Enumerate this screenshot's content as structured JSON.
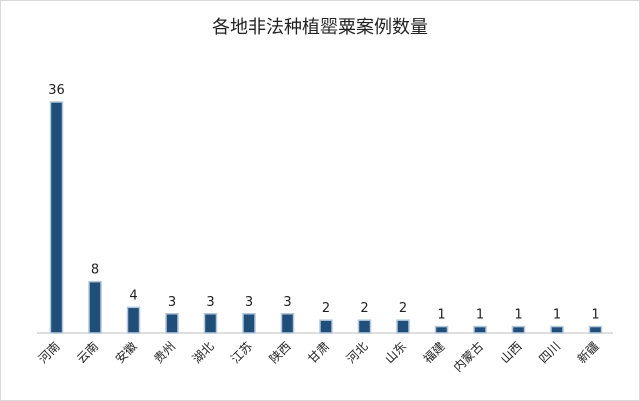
{
  "chart_data": {
    "type": "bar",
    "title": "各地非法种植罂粟案例数量",
    "categories": [
      "河南",
      "云南",
      "安徽",
      "贵州",
      "湖北",
      "江苏",
      "陕西",
      "甘肃",
      "河北",
      "山东",
      "福建",
      "内蒙古",
      "山西",
      "四川",
      "新疆"
    ],
    "values": [
      36,
      8,
      4,
      3,
      3,
      3,
      3,
      2,
      2,
      2,
      1,
      1,
      1,
      1,
      1
    ],
    "xlabel": "",
    "ylabel": "",
    "ylim": [
      0,
      36
    ],
    "grid": false,
    "legend": "none",
    "colors": {
      "bar_fill": "#1f4e79",
      "bar_stroke": "#b4c7dc",
      "axis": "#bfbfbf",
      "label": "#222222"
    }
  }
}
